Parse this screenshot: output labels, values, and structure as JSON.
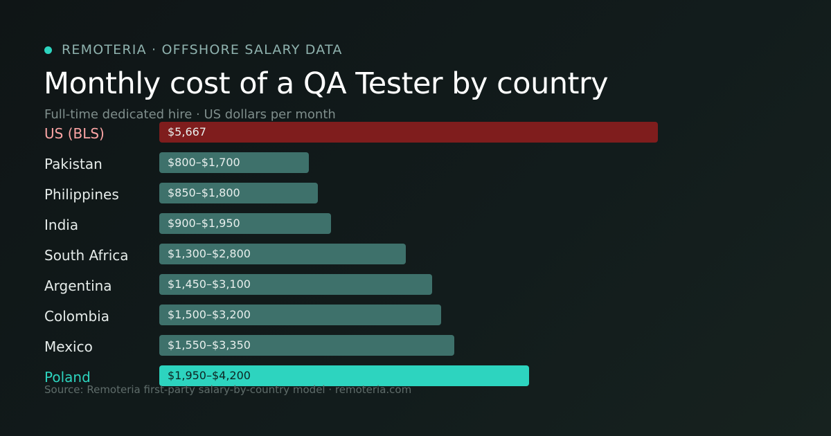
{
  "brand": {
    "text": "REMOTERIA · OFFSHORE SALARY DATA"
  },
  "title": "Monthly cost of a QA Tester by country",
  "subtitle": "Full-time dedicated hire · US dollars per month",
  "source": "Source: Remoteria first-party salary-by-country model · remoteria.com",
  "colors": {
    "accent": "#2dd4bf",
    "us_bar": "#7f1d1d",
    "us_label": "#fca5a5",
    "default_bar": "#3e716b",
    "highlight_bar": "#2dd4bf",
    "highlight_label": "#2dd4bf"
  },
  "chart_data": {
    "type": "bar",
    "orientation": "horizontal",
    "unit": "USD per month",
    "rows": [
      {
        "category": "US (BLS)",
        "value_label": "$5,667",
        "low": 5667,
        "high": 5667,
        "style": "us"
      },
      {
        "category": "Pakistan",
        "value_label": "$800–$1,700",
        "low": 800,
        "high": 1700,
        "style": "default"
      },
      {
        "category": "Philippines",
        "value_label": "$850–$1,800",
        "low": 850,
        "high": 1800,
        "style": "default"
      },
      {
        "category": "India",
        "value_label": "$900–$1,950",
        "low": 900,
        "high": 1950,
        "style": "default"
      },
      {
        "category": "South Africa",
        "value_label": "$1,300–$2,800",
        "low": 1300,
        "high": 2800,
        "style": "default"
      },
      {
        "category": "Argentina",
        "value_label": "$1,450–$3,100",
        "low": 1450,
        "high": 3100,
        "style": "default"
      },
      {
        "category": "Colombia",
        "value_label": "$1,500–$3,200",
        "low": 1500,
        "high": 3200,
        "style": "default"
      },
      {
        "category": "Mexico",
        "value_label": "$1,550–$3,350",
        "low": 1550,
        "high": 3350,
        "style": "default"
      },
      {
        "category": "Poland",
        "value_label": "$1,950–$4,200",
        "low": 1950,
        "high": 4200,
        "style": "highlight"
      }
    ]
  }
}
